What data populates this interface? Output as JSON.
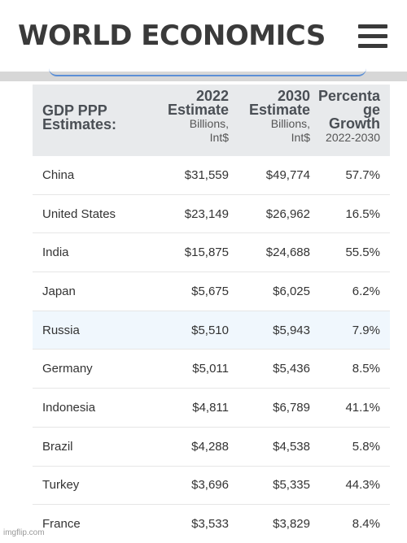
{
  "site": {
    "brand": "WORLD ECONOMICS",
    "menu_icon": "hamburger-menu-icon"
  },
  "table": {
    "header": {
      "col0": "GDP PPP Estimates:",
      "col1_title_a": "2022",
      "col1_title_b": "Estimate",
      "col1_sub_a": "Billions,",
      "col1_sub_b": "Int$",
      "col2_title_a": "2030",
      "col2_title_b": "Estimate",
      "col2_sub_a": "Billions,",
      "col2_sub_b": "Int$",
      "col3_title_a": "Percenta",
      "col3_title_b": "ge",
      "col3_title_c": "Growth",
      "col3_sub": "2022-2030"
    },
    "rows": [
      {
        "country": "China",
        "y2022": "$31,559",
        "y2030": "$49,774",
        "growth": "57.7%"
      },
      {
        "country": "United States",
        "y2022": "$23,149",
        "y2030": "$26,962",
        "growth": "16.5%"
      },
      {
        "country": "India",
        "y2022": "$15,875",
        "y2030": "$24,688",
        "growth": "55.5%"
      },
      {
        "country": "Japan",
        "y2022": "$5,675",
        "y2030": "$6,025",
        "growth": "6.2%"
      },
      {
        "country": "Russia",
        "y2022": "$5,510",
        "y2030": "$5,943",
        "growth": "7.9%"
      },
      {
        "country": "Germany",
        "y2022": "$5,011",
        "y2030": "$5,436",
        "growth": "8.5%"
      },
      {
        "country": "Indonesia",
        "y2022": "$4,811",
        "y2030": "$6,789",
        "growth": "41.1%"
      },
      {
        "country": "Brazil",
        "y2022": "$4,288",
        "y2030": "$4,538",
        "growth": "5.8%"
      },
      {
        "country": "Turkey",
        "y2022": "$3,696",
        "y2030": "$5,335",
        "growth": "44.3%"
      },
      {
        "country": "France",
        "y2022": "$3,533",
        "y2030": "$3,829",
        "growth": "8.4%"
      }
    ],
    "highlight_color": "#f0f7fd",
    "header_color": "#e8eaec"
  },
  "watermark": "imgflip.com"
}
